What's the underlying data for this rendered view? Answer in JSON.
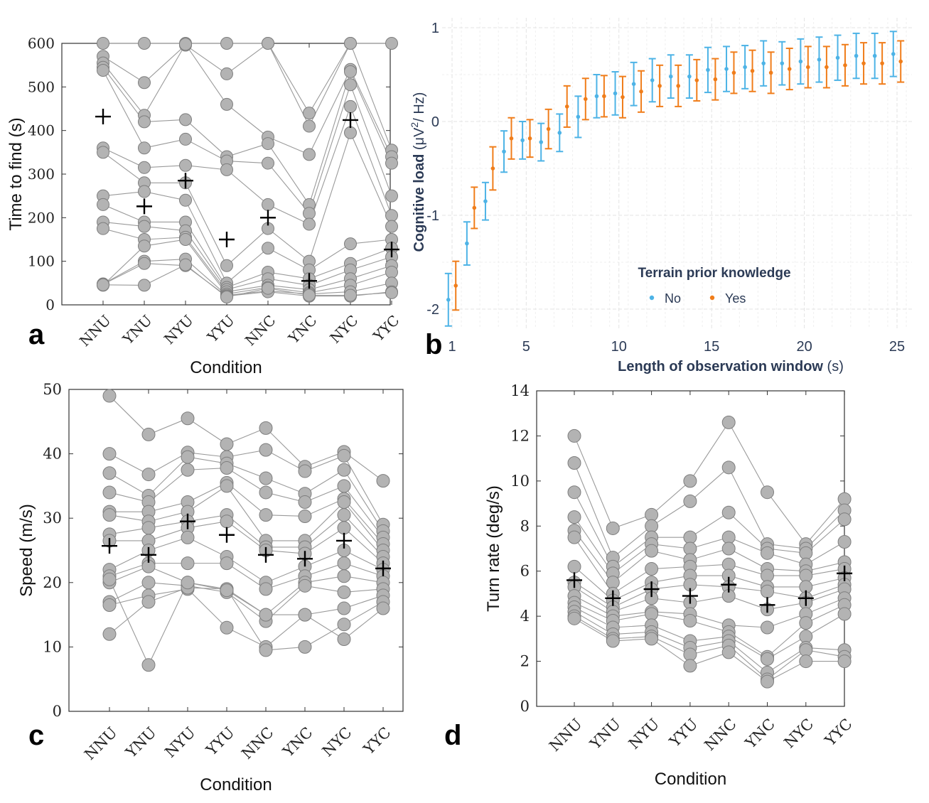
{
  "chart_data": [
    {
      "panel": "a",
      "type": "scatter",
      "xlabel": "Condition",
      "ylabel": "Time to find (s)",
      "categories": [
        "NNU",
        "YNU",
        "NYU",
        "YYU",
        "NNC",
        "YNC",
        "NYC",
        "YYC"
      ],
      "ylim": [
        0,
        600
      ],
      "yticks": [
        "0",
        "100",
        "200",
        "300",
        "400",
        "500",
        "600"
      ],
      "means": [
        432,
        226,
        285,
        150,
        200,
        55,
        424,
        127
      ],
      "subjects": [
        [
          600,
          600,
          600,
          600,
          600,
          410,
          600,
          600
        ],
        [
          570,
          510,
          596,
          530,
          600,
          440,
          600,
          355
        ],
        [
          555,
          435,
          598,
          460,
          385,
          345,
          540,
          340
        ],
        [
          545,
          420,
          425,
          340,
          370,
          230,
          535,
          325
        ],
        [
          538,
          360,
          380,
          330,
          325,
          210,
          505,
          250
        ],
        [
          360,
          315,
          320,
          310,
          230,
          185,
          455,
          205
        ],
        [
          350,
          280,
          280,
          90,
          175,
          100,
          395,
          180
        ],
        [
          250,
          260,
          240,
          50,
          130,
          80,
          140,
          150
        ],
        [
          230,
          190,
          190,
          40,
          75,
          60,
          95,
          130
        ],
        [
          190,
          180,
          170,
          35,
          60,
          45,
          80,
          110
        ],
        [
          175,
          150,
          155,
          30,
          45,
          35,
          60,
          90
        ],
        [
          45,
          135,
          150,
          25,
          40,
          28,
          45,
          75
        ],
        [
          48,
          100,
          105,
          22,
          32,
          25,
          30,
          50
        ],
        [
          47,
          95,
          90,
          20,
          30,
          20,
          20,
          30
        ],
        [
          46,
          45,
          92,
          18,
          38,
          22,
          22,
          28
        ]
      ]
    },
    {
      "panel": "b",
      "type": "scatter",
      "xlabel": "Length of observation window (s)",
      "ylabel": "Cognitive load (μV²/ Hz)",
      "xticks": [
        "1",
        "5",
        "10",
        "15",
        "20",
        "25"
      ],
      "yticks": [
        "-2",
        "-1",
        "0",
        "1"
      ],
      "xlim": [
        1,
        25.5
      ],
      "ylim": [
        -2.2,
        1.05
      ],
      "legend_title": "Terrain prior knowledge",
      "legend_position": "center",
      "series": [
        {
          "name": "No",
          "color": "#4DB3E6",
          "x": [
            0.8,
            1.8,
            2.8,
            3.8,
            4.8,
            5.8,
            6.8,
            7.8,
            8.8,
            9.8,
            10.8,
            11.8,
            12.8,
            13.8,
            14.8,
            15.8,
            16.8,
            17.8,
            18.8,
            19.8,
            20.8,
            21.8,
            22.8,
            23.8,
            24.8
          ],
          "y": [
            -1.9,
            -1.3,
            -0.85,
            -0.32,
            -0.2,
            -0.22,
            -0.12,
            0.05,
            0.27,
            0.3,
            0.4,
            0.44,
            0.48,
            0.48,
            0.55,
            0.56,
            0.58,
            0.62,
            0.62,
            0.64,
            0.66,
            0.68,
            0.7,
            0.7,
            0.72
          ],
          "err": [
            0.28,
            0.23,
            0.2,
            0.22,
            0.2,
            0.2,
            0.2,
            0.22,
            0.23,
            0.23,
            0.23,
            0.23,
            0.23,
            0.23,
            0.24,
            0.24,
            0.23,
            0.24,
            0.23,
            0.24,
            0.24,
            0.24,
            0.24,
            0.24,
            0.24
          ]
        },
        {
          "name": "Yes",
          "color": "#F07D1A",
          "x": [
            1.2,
            2.2,
            3.2,
            4.2,
            5.2,
            6.2,
            7.2,
            8.2,
            9.2,
            10.2,
            11.2,
            12.2,
            13.2,
            14.2,
            15.2,
            16.2,
            17.2,
            18.2,
            19.2,
            20.2,
            21.2,
            22.2,
            23.2,
            24.2,
            25.2
          ],
          "y": [
            -1.75,
            -0.92,
            -0.5,
            -0.18,
            -0.18,
            -0.08,
            0.16,
            0.24,
            0.27,
            0.26,
            0.32,
            0.38,
            0.38,
            0.44,
            0.45,
            0.52,
            0.54,
            0.52,
            0.56,
            0.58,
            0.58,
            0.6,
            0.62,
            0.62,
            0.64
          ],
          "err": [
            0.26,
            0.22,
            0.23,
            0.22,
            0.2,
            0.21,
            0.22,
            0.22,
            0.22,
            0.22,
            0.22,
            0.22,
            0.22,
            0.22,
            0.22,
            0.22,
            0.22,
            0.22,
            0.22,
            0.22,
            0.22,
            0.22,
            0.22,
            0.22,
            0.22
          ]
        }
      ]
    },
    {
      "panel": "c",
      "type": "scatter",
      "xlabel": "Condition",
      "ylabel": "Speed (m/s)",
      "categories": [
        "NNU",
        "YNU",
        "NYU",
        "YYU",
        "NNC",
        "YNC",
        "NYC",
        "YYC"
      ],
      "ylim": [
        0,
        50
      ],
      "yticks": [
        "0",
        "10",
        "20",
        "30",
        "40",
        "50"
      ],
      "means": [
        25.7,
        24.3,
        29.5,
        27.4,
        24.3,
        23.7,
        26.5,
        22.2
      ],
      "subjects": [
        [
          49,
          43,
          45.5,
          41.5,
          44,
          38,
          40.3,
          35.8
        ],
        [
          40,
          36.8,
          40.2,
          39.5,
          40.6,
          37.3,
          39.7,
          29
        ],
        [
          37,
          33.5,
          39.5,
          38.5,
          36.2,
          33.8,
          37.5,
          28
        ],
        [
          34,
          32.5,
          37.5,
          37.8,
          34,
          32.5,
          35,
          27
        ],
        [
          31,
          31,
          32.5,
          35.5,
          30.5,
          30.3,
          33,
          26
        ],
        [
          30.5,
          29.5,
          31,
          35,
          26.5,
          26.5,
          32.5,
          25
        ],
        [
          27.5,
          28.5,
          29.5,
          30.5,
          25.5,
          25.5,
          30.5,
          24
        ],
        [
          26.5,
          26.5,
          28.5,
          29.5,
          25,
          24.5,
          28.5,
          23
        ],
        [
          22,
          25,
          27,
          24,
          20,
          22.5,
          25,
          22
        ],
        [
          21,
          23,
          23,
          23,
          19,
          21,
          23,
          21
        ],
        [
          20,
          22.5,
          20,
          19,
          15,
          20,
          21,
          20
        ],
        [
          17,
          20,
          19.5,
          18.5,
          14,
          19.5,
          18.5,
          19
        ],
        [
          16.5,
          18,
          19,
          13,
          10,
          15,
          16,
          18
        ],
        [
          12,
          17,
          19.2,
          19,
          9.5,
          10,
          13.5,
          17
        ],
        [
          20.5,
          7.2,
          20,
          18.8,
          15,
          15,
          11.2,
          16
        ]
      ]
    },
    {
      "panel": "d",
      "type": "scatter",
      "xlabel": "Condition",
      "ylabel": "Turn rate (deg/s)",
      "categories": [
        "NNU",
        "YNU",
        "NYU",
        "YYU",
        "NNC",
        "YNC",
        "NYC",
        "YYC"
      ],
      "ylim": [
        0,
        14
      ],
      "yticks": [
        "0",
        "2",
        "4",
        "6",
        "8",
        "10",
        "12",
        "14"
      ],
      "means": [
        5.6,
        4.8,
        5.2,
        4.9,
        5.4,
        4.5,
        4.8,
        5.9
      ],
      "subjects": [
        [
          12,
          7.9,
          8.5,
          10,
          12.6,
          9.5,
          7.2,
          9.2
        ],
        [
          10.8,
          6.6,
          8,
          9.1,
          10.6,
          7.2,
          7,
          8.7
        ],
        [
          9.5,
          6.2,
          7.5,
          7.5,
          8.6,
          7,
          6.8,
          8.3
        ],
        [
          8.4,
          5.9,
          7.2,
          7,
          7.5,
          6.8,
          6.3,
          7.3
        ],
        [
          7.8,
          5.5,
          6.9,
          6.5,
          7,
          6.1,
          6,
          6.4
        ],
        [
          7.5,
          5,
          6.1,
          6.2,
          6.3,
          5.8,
          5.8,
          6.1
        ],
        [
          6.2,
          4.7,
          5.5,
          5.8,
          5.8,
          5.3,
          5.3,
          5.7
        ],
        [
          5.5,
          4.4,
          5.2,
          5.4,
          5.3,
          5.1,
          4.8,
          5.4
        ],
        [
          5.3,
          4.2,
          4.8,
          4.6,
          4.9,
          4.3,
          4.6,
          5.2
        ],
        [
          4.9,
          4,
          4.2,
          4.1,
          3.6,
          3.5,
          4.1,
          4.8
        ],
        [
          4.6,
          3.8,
          4.1,
          3.8,
          3.3,
          2.2,
          3.7,
          4.5
        ],
        [
          4.4,
          3.5,
          3.6,
          2.9,
          3.1,
          2.1,
          3.1,
          4.1
        ],
        [
          4.2,
          3.2,
          3.3,
          2.6,
          2.9,
          1.5,
          2.6,
          2.5
        ],
        [
          4,
          3,
          3.1,
          2.3,
          2.7,
          1.2,
          2.5,
          2.2
        ],
        [
          3.9,
          2.9,
          3,
          1.8,
          2.4,
          1.1,
          2,
          2
        ]
      ]
    }
  ],
  "panel_labels": [
    "a",
    "b",
    "c",
    "d"
  ]
}
